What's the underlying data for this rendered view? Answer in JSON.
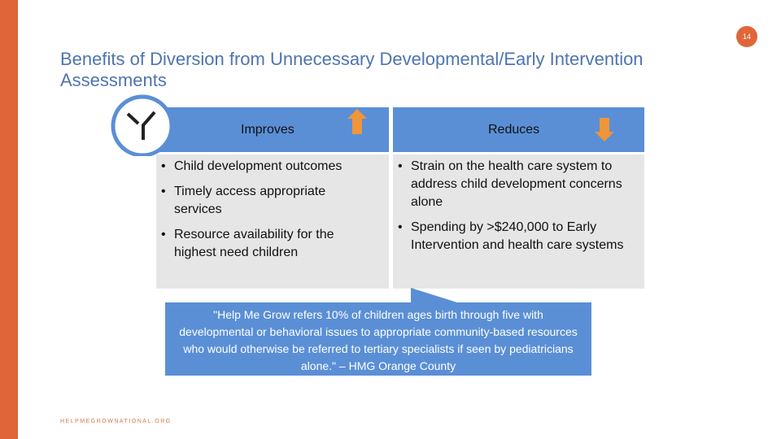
{
  "page_number": "14",
  "title": "Benefits of Diversion from Unnecessary Developmental/Early Intervention Assessments",
  "table": {
    "columns": [
      {
        "header": "Improves",
        "items": [
          "Child development outcomes",
          "Timely access appropriate services",
          "Resource availability for the highest need children"
        ]
      },
      {
        "header": "Reduces",
        "items": [
          "Strain on the health care system to address child development concerns alone",
          "Spending by >$240,000 to Early Intervention and health care systems"
        ]
      }
    ]
  },
  "quote": "\"Help Me Grow refers 10% of children ages birth through five with developmental or behavioral issues to appropriate community-based resources who would otherwise be referred to tertiary specialists if seen by pediatricians alone.\" – HMG Orange County",
  "footer": "HELPMEGROWNATIONAL.ORG"
}
